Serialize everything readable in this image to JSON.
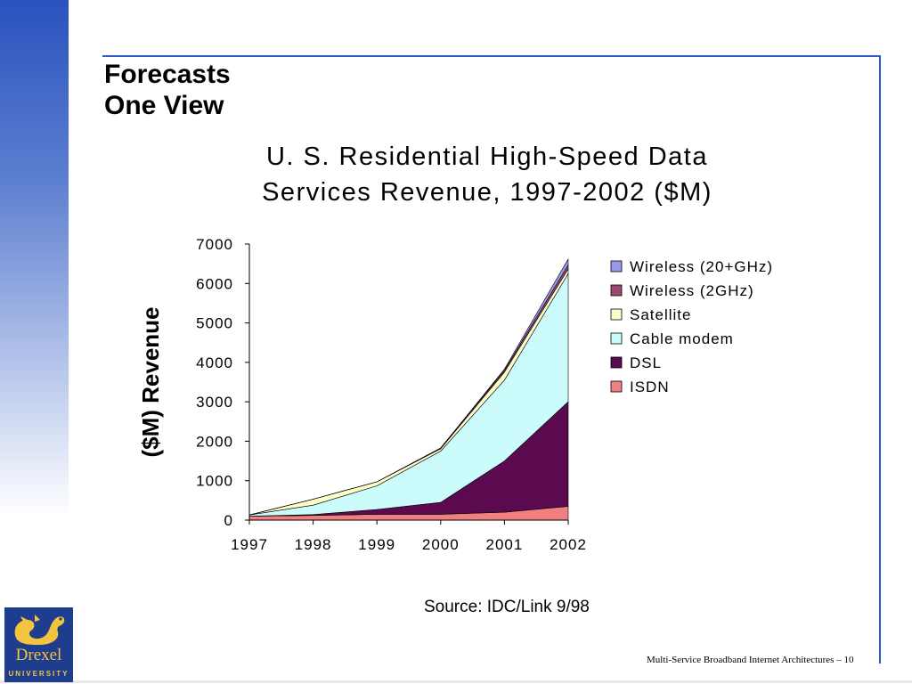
{
  "slide": {
    "title_line1": "Forecasts",
    "title_line2": "One View",
    "source": "Source: IDC/Link 9/98",
    "footer": "Multi-Service Broadband Internet Architectures – 10"
  },
  "logo": {
    "word": "Drexel",
    "sub": "UNIVERSITY"
  },
  "chart_data": {
    "type": "area",
    "stacked": true,
    "title_line1": "U. S. Residential High-Speed Data",
    "title_line2": "Services Revenue, 1997-2002 ($M)",
    "ylabel": "($M) Revenue",
    "xlabel": "",
    "categories": [
      "1997",
      "1998",
      "1999",
      "2000",
      "2001",
      "2002"
    ],
    "ylim": [
      0,
      7000
    ],
    "yticks": [
      0,
      1000,
      2000,
      3000,
      4000,
      5000,
      6000,
      7000
    ],
    "legend_position": "right",
    "series": [
      {
        "name": "ISDN",
        "color": "#f08080",
        "values": [
          100,
          120,
          150,
          150,
          200,
          350
        ]
      },
      {
        "name": "DSL",
        "color": "#5c0a50",
        "values": [
          0,
          20,
          120,
          300,
          1300,
          2650
        ]
      },
      {
        "name": "Cable modem",
        "color": "#ccfbfb",
        "values": [
          30,
          240,
          600,
          1300,
          2050,
          3250
        ]
      },
      {
        "name": "Satellite",
        "color": "#fdfdc8",
        "values": [
          0,
          150,
          100,
          60,
          200,
          120
        ]
      },
      {
        "name": "Wireless (2GHz)",
        "color": "#9a4a72",
        "values": [
          0,
          0,
          0,
          20,
          50,
          100
        ]
      },
      {
        "name": "Wireless (20+GHz)",
        "color": "#9999ee",
        "values": [
          0,
          0,
          0,
          0,
          30,
          150
        ]
      }
    ]
  }
}
